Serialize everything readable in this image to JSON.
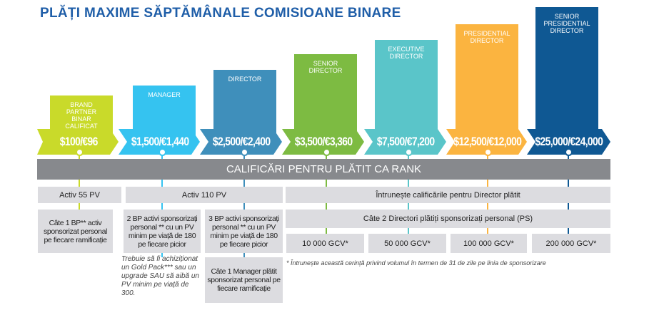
{
  "title": "PLĂȚI MAXIME SĂPTĂMÂNALE COMISIOANE BINARE",
  "ranks": [
    {
      "name": "BRAND PARTNER BINAR CALIFICAT",
      "pay": "$100/€96",
      "color": "#c9da2a"
    },
    {
      "name": "MANAGER",
      "pay": "$1,500/€1,440",
      "color": "#35c3f0"
    },
    {
      "name": "DIRECTOR",
      "pay": "$2,500/€2,400",
      "color": "#3f8fbb"
    },
    {
      "name": "SENIOR DIRECTOR",
      "pay": "$3,500/€3,360",
      "color": "#7dbb42"
    },
    {
      "name": "EXECUTIVE DIRECTOR",
      "pay": "$7,500/€7,200",
      "color": "#5ac5c9"
    },
    {
      "name": "PRESIDENTIAL DIRECTOR",
      "pay": "$12,500/€12,000",
      "color": "#fbb440"
    },
    {
      "name": "SENIOR PRESIDENTIAL DIRECTOR",
      "pay": "$25,000/€24,000",
      "color": "#0f5893"
    }
  ],
  "banner": "CALIFICĂRI PENTRU PLĂTIT CA RANK",
  "requirements": {
    "activ55": "Activ 55 PV",
    "activ110": "Activ 110 PV",
    "director_quals": "Întrunește calificările pentru Director plătit",
    "bp1": "Câte 1 BP** activ sponsorizat personal pe fiecare ramificație",
    "bp2": "2 BP activi sponsorizați personal ** cu un PV minim pe viață de 180 pe fiecare picior",
    "bp3": "3 BP activi sponsorizați personal ** cu un PV minim pe viață de 180 pe fiecare picior",
    "directors2": "Câte 2 Directori plătiți sponsorizați personal (PS)",
    "manager1": "Câte 1 Manager plătit sponsorizat personal pe fiecare ramificație",
    "gold_note": "Trebuie să fi achiziționat un Gold Pack*** sau un upgrade SAU să aibă un PV minim pe viață de 300.",
    "gcv": [
      "10 000 GCV*",
      "50 000 GCV*",
      "100 000 GCV*",
      "200 000 GCV*"
    ],
    "footnote": "* Întrunește această cerință privind volumul în termen de 31 de zile pe linia de sponsorizare"
  }
}
